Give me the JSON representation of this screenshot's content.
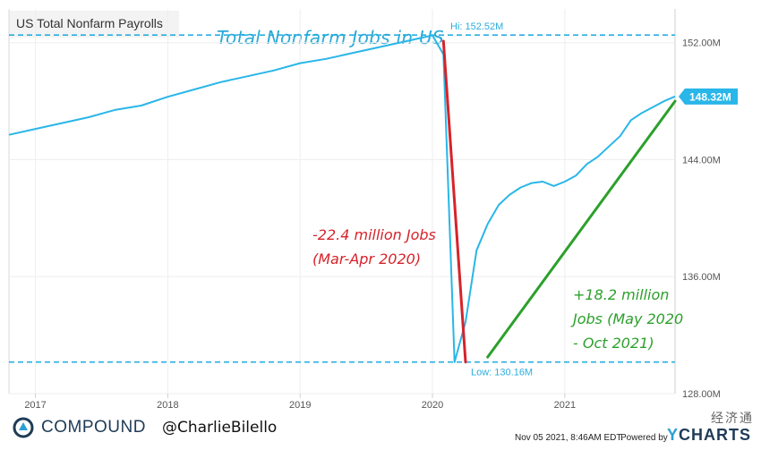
{
  "legend": {
    "series_label": "US Total Nonfarm Payrolls"
  },
  "annotations": {
    "title": "Total Nonfarm Jobs in US",
    "drop_line1": "-22.4 million Jobs",
    "drop_line2": "(Mar-Apr 2020)",
    "rise_line1": "+18.2 million",
    "rise_line2": "Jobs (May 2020",
    "rise_line3": "- Oct 2021)"
  },
  "chart_data": {
    "type": "line",
    "series": [
      {
        "name": "US Total Nonfarm Payrolls",
        "color": "#29b6e8",
        "x": [
          2016.8,
          2017.0,
          2017.2,
          2017.4,
          2017.6,
          2017.8,
          2018.0,
          2018.2,
          2018.4,
          2018.6,
          2018.8,
          2019.0,
          2019.2,
          2019.4,
          2019.6,
          2019.8,
          2020.0,
          2020.083,
          2020.167,
          2020.25,
          2020.333,
          2020.417,
          2020.5,
          2020.583,
          2020.667,
          2020.75,
          2020.833,
          2020.917,
          2021.0,
          2021.083,
          2021.167,
          2021.25,
          2021.333,
          2021.417,
          2021.5,
          2021.583,
          2021.667,
          2021.75,
          2021.833
        ],
        "y": [
          145.7,
          146.1,
          146.5,
          146.9,
          147.4,
          147.7,
          148.3,
          148.8,
          149.3,
          149.7,
          150.1,
          150.6,
          150.9,
          151.3,
          151.7,
          152.1,
          152.5,
          151.2,
          130.16,
          132.9,
          137.8,
          139.6,
          140.9,
          141.6,
          142.1,
          142.4,
          142.5,
          142.2,
          142.5,
          142.9,
          143.7,
          144.2,
          144.9,
          145.6,
          146.7,
          147.2,
          147.6,
          148.0,
          148.32
        ]
      }
    ],
    "trend_lines": [
      {
        "color": "#d6232a",
        "x": [
          2020.083,
          2020.25
        ],
        "y": [
          152.1,
          130.16
        ]
      },
      {
        "color": "#2ca02c",
        "x": [
          2020.417,
          2021.833
        ],
        "y": [
          130.5,
          148.0
        ]
      }
    ],
    "reference_lines": [
      {
        "label": "Hi: 152.52M",
        "y": 152.52
      },
      {
        "label": "Low: 130.16M",
        "y": 130.16
      }
    ],
    "last_value_label": "148.32M",
    "last_value_y": 148.32,
    "xlim": [
      2016.8,
      2021.833
    ],
    "ylim": [
      128.0,
      154.0
    ],
    "x_ticks": [
      {
        "value": 2017.0,
        "label": "2017"
      },
      {
        "value": 2018.0,
        "label": "2018"
      },
      {
        "value": 2019.0,
        "label": "2019"
      },
      {
        "value": 2020.0,
        "label": "2020"
      },
      {
        "value": 2021.0,
        "label": "2021"
      }
    ],
    "y_ticks": [
      {
        "value": 128.0,
        "label": "128.00M"
      },
      {
        "value": 136.0,
        "label": "136.00M"
      },
      {
        "value": 144.0,
        "label": "144.00M"
      },
      {
        "value": 152.0,
        "label": "152.00M"
      }
    ],
    "grid": true
  },
  "footer": {
    "brand": "COMPOUND",
    "handle": "@CharlieBilello",
    "date": "Nov 05 2021, 8:46AM EDT.",
    "powered": "Powered by",
    "ycharts_y": "Y",
    "ycharts_rest": "CHARTS",
    "watermark": "经济通"
  }
}
